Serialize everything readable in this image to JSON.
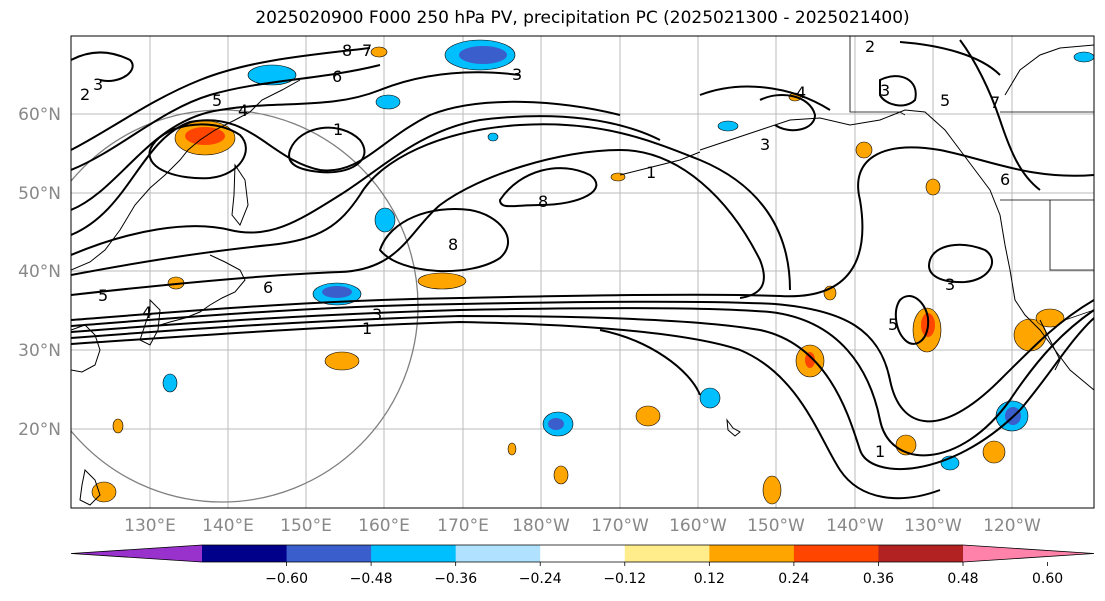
{
  "title": "2025020900 F000 250 hPa PV, precipitation PC (2025021300 - 2025021400)",
  "map": {
    "lat_labels": [
      "60°N",
      "50°N",
      "40°N",
      "30°N",
      "20°N"
    ],
    "lon_labels": [
      "130°E",
      "140°E",
      "150°E",
      "160°E",
      "170°E",
      "180°W",
      "170°W",
      "160°W",
      "150°W",
      "140°W",
      "130°W",
      "120°W"
    ],
    "contour_labels": [
      "2",
      "3",
      "8",
      "7",
      "6",
      "5",
      "4",
      "1",
      "8",
      "8",
      "6",
      "5",
      "4",
      "3",
      "1",
      "3",
      "1",
      "4",
      "3",
      "7",
      "5",
      "3",
      "6",
      "3",
      "5",
      "2",
      "1"
    ],
    "fields": {
      "contour": "250 hPa PV",
      "shading": "precipitation PC"
    }
  },
  "colorbar": {
    "ticks": [
      "−0.60",
      "−0.48",
      "−0.36",
      "−0.24",
      "−0.12",
      "0.12",
      "0.24",
      "0.36",
      "0.48",
      "0.60"
    ],
    "colors": [
      "#9932CC",
      "#00008B",
      "#3A5FCD",
      "#00BFFF",
      "#B0E2FF",
      "#FFFFFF",
      "#FFEC8B",
      "#FFA500",
      "#FF4500",
      "#B22222",
      "#FF82AB"
    ]
  }
}
